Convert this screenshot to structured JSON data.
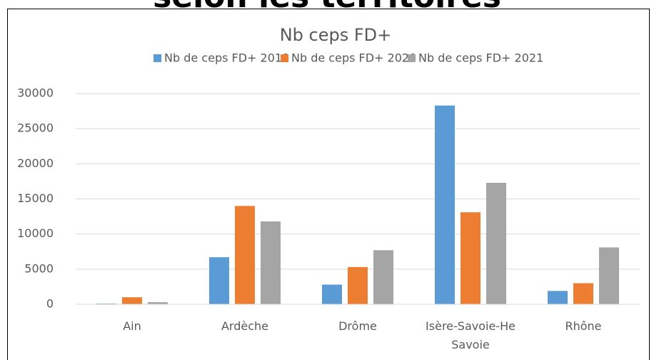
{
  "header_text": "selon les territoires",
  "chart_data": {
    "type": "bar",
    "title": "Nb ceps FD+",
    "categories": [
      "Ain",
      "Ardèche",
      "Drôme",
      "Isère-Savoie-He Savoie",
      "Rhône"
    ],
    "series": [
      {
        "name": "Nb de ceps FD+ 2019",
        "color": "#5b9bd5",
        "values": [
          100,
          6700,
          2800,
          28300,
          1900
        ]
      },
      {
        "name": "Nb de ceps FD+ 2020",
        "color": "#ed7d31",
        "values": [
          1000,
          14000,
          5300,
          13100,
          3000
        ]
      },
      {
        "name": "Nb de ceps FD+ 2021",
        "color": "#a5a5a5",
        "values": [
          300,
          11800,
          7700,
          17300,
          8100
        ]
      }
    ],
    "ylim": [
      0,
      30000
    ],
    "yticks": [
      0,
      5000,
      10000,
      15000,
      20000,
      25000,
      30000
    ],
    "grid": true,
    "legend": "top"
  }
}
